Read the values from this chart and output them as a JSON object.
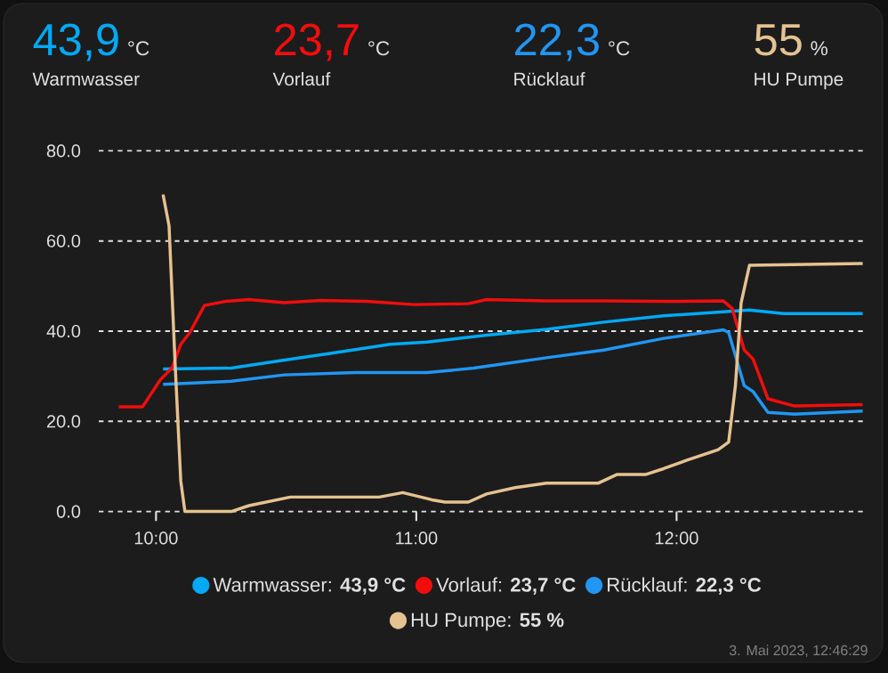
{
  "chart_data": {
    "type": "line",
    "xlim": [
      9.78,
      12.72
    ],
    "ylim": [
      0,
      80
    ],
    "xticks": [
      {
        "value": 10,
        "label": "10:00"
      },
      {
        "value": 11,
        "label": "11:00"
      },
      {
        "value": 12,
        "label": "12:00"
      }
    ],
    "yticks": [
      {
        "value": 0,
        "label": "0.0"
      },
      {
        "value": 20,
        "label": "20.0"
      },
      {
        "value": 40,
        "label": "40.0"
      },
      {
        "value": 60,
        "label": "60.0"
      },
      {
        "value": 80,
        "label": "80.0"
      }
    ],
    "grid": "y",
    "legend": "bottom",
    "series": [
      {
        "name": "Warmwasser: **43,9 °C**",
        "color": "#03a9f4",
        "x": [
          10.027,
          10.289,
          10.47,
          10.675,
          10.9,
          11.041,
          11.27,
          11.5,
          11.72,
          11.95,
          12.18,
          12.28,
          12.41,
          12.715
        ],
        "values": [
          31.6,
          31.8,
          33.4,
          35.1,
          37.1,
          37.6,
          39.1,
          40.4,
          42,
          43.4,
          44.3,
          44.7,
          43.9,
          43.9
        ]
      },
      {
        "name": "Vorlauf: **23,7 °C**",
        "color": "#f20d0d",
        "x": [
          9.857,
          9.948,
          10.016,
          10.061,
          10.095,
          10.13,
          10.186,
          10.266,
          10.357,
          10.493,
          10.63,
          10.81,
          10.99,
          11.2,
          11.27,
          11.5,
          11.72,
          11.95,
          12.18,
          12.214,
          12.26,
          12.294,
          12.351,
          12.453,
          12.715
        ],
        "values": [
          23.2,
          23.2,
          29.2,
          31.8,
          37.1,
          39.7,
          45.7,
          46.6,
          47,
          46.3,
          46.8,
          46.6,
          45.9,
          46.1,
          47,
          46.7,
          46.7,
          46.6,
          46.7,
          45,
          35.8,
          33.8,
          25,
          23.4,
          23.7
        ]
      },
      {
        "name": "Rücklauf: **22,3 °C**",
        "color": "#2196f3",
        "x": [
          10.027,
          10.289,
          10.493,
          10.766,
          11.041,
          11.22,
          11.5,
          11.72,
          11.95,
          12.18,
          12.2,
          12.26,
          12.294,
          12.351,
          12.453,
          12.715
        ],
        "values": [
          28.2,
          28.9,
          30.3,
          30.8,
          30.8,
          31.8,
          34.1,
          35.8,
          38.4,
          40.3,
          39.7,
          27.9,
          26.6,
          22,
          21.6,
          22.3
        ]
      },
      {
        "name": "HU Pumpe: **55 %**",
        "color": "#e5c290",
        "x": [
          10.027,
          10.05,
          10.073,
          10.095,
          10.111,
          10.289,
          10.357,
          10.516,
          10.675,
          10.857,
          10.948,
          11.06,
          11.11,
          11.2,
          11.27,
          11.38,
          11.5,
          11.7,
          11.77,
          11.88,
          11.95,
          12.04,
          12.16,
          12.2,
          12.226,
          12.248,
          12.28,
          12.715
        ],
        "values": [
          70.3,
          63.4,
          33.2,
          6.8,
          0,
          0,
          1.3,
          3.2,
          3.2,
          3.2,
          4.2,
          2.6,
          2.1,
          2.1,
          3.9,
          5.3,
          6.3,
          6.3,
          8.2,
          8.2,
          9.5,
          11.4,
          13.7,
          15.4,
          27.9,
          46.3,
          54.6,
          55
        ]
      }
    ],
    "annotations": [
      "43,9",
      "°C",
      "Warmwasser",
      "23,7",
      "°C",
      "Vorlauf",
      "22,3",
      "°C",
      "Rücklauf",
      "55",
      "%",
      "HU Pumpe",
      "3. Mai 2023, 12:46:29"
    ]
  }
}
